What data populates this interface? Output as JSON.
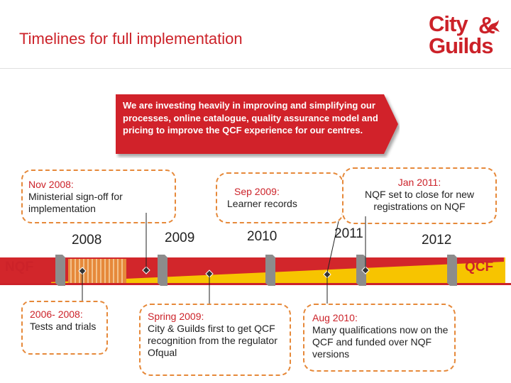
{
  "header": {
    "title": "Timelines for full implementation",
    "logo_line1": "City",
    "logo_amp": "&",
    "logo_line2": "Guilds"
  },
  "banner": {
    "text": "We are investing heavily in improving and simplifying our processes, online catalogue, quality assurance model and pricing to improve the QCF experience for our centres."
  },
  "milestones_top": [
    {
      "label": "Nov 2008:",
      "text": "Ministerial sign-off for implementation"
    },
    {
      "label": "Sep 2009:",
      "text": "Learner records"
    },
    {
      "label": "Jan 2011:",
      "text": "NQF set to close for new registrations on NQF"
    }
  ],
  "milestones_bottom": [
    {
      "label": "2006- 2008:",
      "text": "Tests and trials"
    },
    {
      "label": "Spring 2009:",
      "text": "City & Guilds first to get QCF recognition from the regulator Ofqual"
    },
    {
      "label": "Aug 2010:",
      "text": "Many qualifications now on the QCF and funded over NQF versions"
    }
  ],
  "years": [
    "2008",
    "2009",
    "2010",
    "2011",
    "2012"
  ],
  "timeline": {
    "left_label": "NQF",
    "right_label": "QCF"
  },
  "colors": {
    "brand_red": "#cc2229",
    "accent_orange": "#e6893a",
    "qcf_yellow": "#f7c400",
    "banner_red": "#d1232a"
  }
}
